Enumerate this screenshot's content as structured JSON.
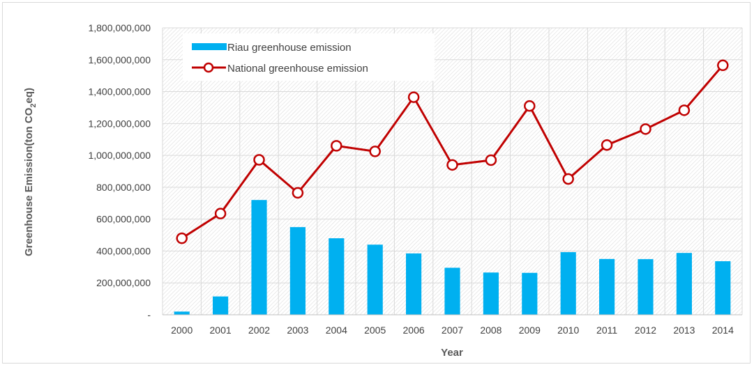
{
  "chart_data": {
    "type": "bar",
    "categories": [
      "2000",
      "2001",
      "2002",
      "2003",
      "2004",
      "2005",
      "2006",
      "2007",
      "2008",
      "2009",
      "2010",
      "2011",
      "2012",
      "2013",
      "2014"
    ],
    "series": [
      {
        "name": "Riau greenhouse emission",
        "type": "bar",
        "color": "#00b0f0",
        "values": [
          20000000,
          115000000,
          720000000,
          550000000,
          480000000,
          440000000,
          385000000,
          295000000,
          265000000,
          263000000,
          393000000,
          350000000,
          349000000,
          388000000,
          336000000
        ]
      },
      {
        "name": "National greenhouse emission",
        "type": "line",
        "color": "#c00000",
        "values": [
          480000000,
          635000000,
          972000000,
          765000000,
          1060000000,
          1025000000,
          1365000000,
          940000000,
          970000000,
          1310000000,
          852000000,
          1065000000,
          1165000000,
          1283000000,
          1565000000
        ]
      }
    ],
    "yticks": [
      "-",
      "200,000,000",
      "400,000,000",
      "600,000,000",
      "800,000,000",
      "1,000,000,000",
      "1,200,000,000",
      "1,400,000,000",
      "1,600,000,000",
      "1,800,000,000"
    ],
    "ylim": [
      0,
      1800000000
    ],
    "xlabel": "Year",
    "ylabel": "Greenhouse Emission(ton CO",
    "ylabel_sub": "2",
    "ylabel_suffix": "eq)",
    "legend_position": "top-left",
    "grid": true
  }
}
